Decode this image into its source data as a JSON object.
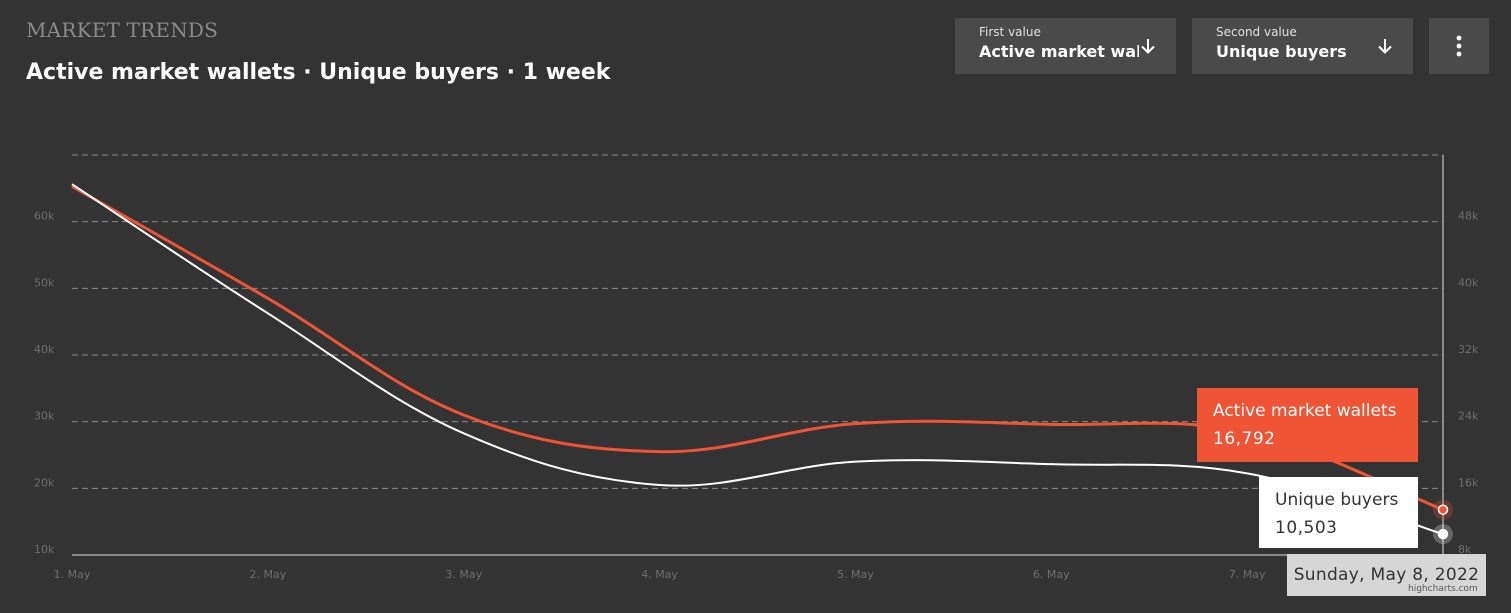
{
  "header": {
    "section_title": "MARKET TRENDS",
    "chart_heading": "Active market wallets · Unique buyers · 1 week"
  },
  "controls": {
    "first": {
      "caption": "First value",
      "value": "Active market wall..."
    },
    "second": {
      "caption": "Second value",
      "value": "Unique buyers"
    },
    "menu_icon": "more-vert-icon",
    "dropdown_icon": "arrow-down-icon"
  },
  "colors": {
    "background": "#333333",
    "wallets": "#ef5435",
    "buyers": "#ffffff",
    "grid": "#8a8a8a",
    "axis_text": "#6e6e6e"
  },
  "tooltip": {
    "wallets": {
      "name": "Active market wallets",
      "value": "16,792"
    },
    "buyers": {
      "name": "Unique buyers",
      "value": "10,503"
    },
    "date": "Sunday, May 8, 2022"
  },
  "credit": "highcharts.com",
  "chart_data": {
    "type": "line",
    "x": [
      "1. May",
      "2. May",
      "3. May",
      "4. May",
      "5. May",
      "6. May",
      "7. May",
      "8. May"
    ],
    "x_tick_labels": [
      "1. May",
      "2. May",
      "3. May",
      "4. May",
      "5. May",
      "6. May",
      "7. May"
    ],
    "y_left": {
      "ticks": [
        "10k",
        "20k",
        "30k",
        "40k",
        "50k",
        "60k"
      ],
      "range": [
        10000,
        70000
      ]
    },
    "y_right": {
      "ticks": [
        "8k",
        "16k",
        "24k",
        "32k",
        "40k",
        "48k"
      ],
      "range": [
        8000,
        56000
      ]
    },
    "grid": true,
    "series": [
      {
        "name": "Active market wallets",
        "axis": "left",
        "color": "#ef5435",
        "values": [
          65300,
          48500,
          31000,
          25500,
          29700,
          29600,
          28400,
          16792
        ]
      },
      {
        "name": "Unique buyers",
        "axis": "right",
        "color": "#ffffff",
        "values": [
          52500,
          37000,
          22600,
          16400,
          19200,
          18900,
          17800,
          10503
        ]
      }
    ]
  }
}
